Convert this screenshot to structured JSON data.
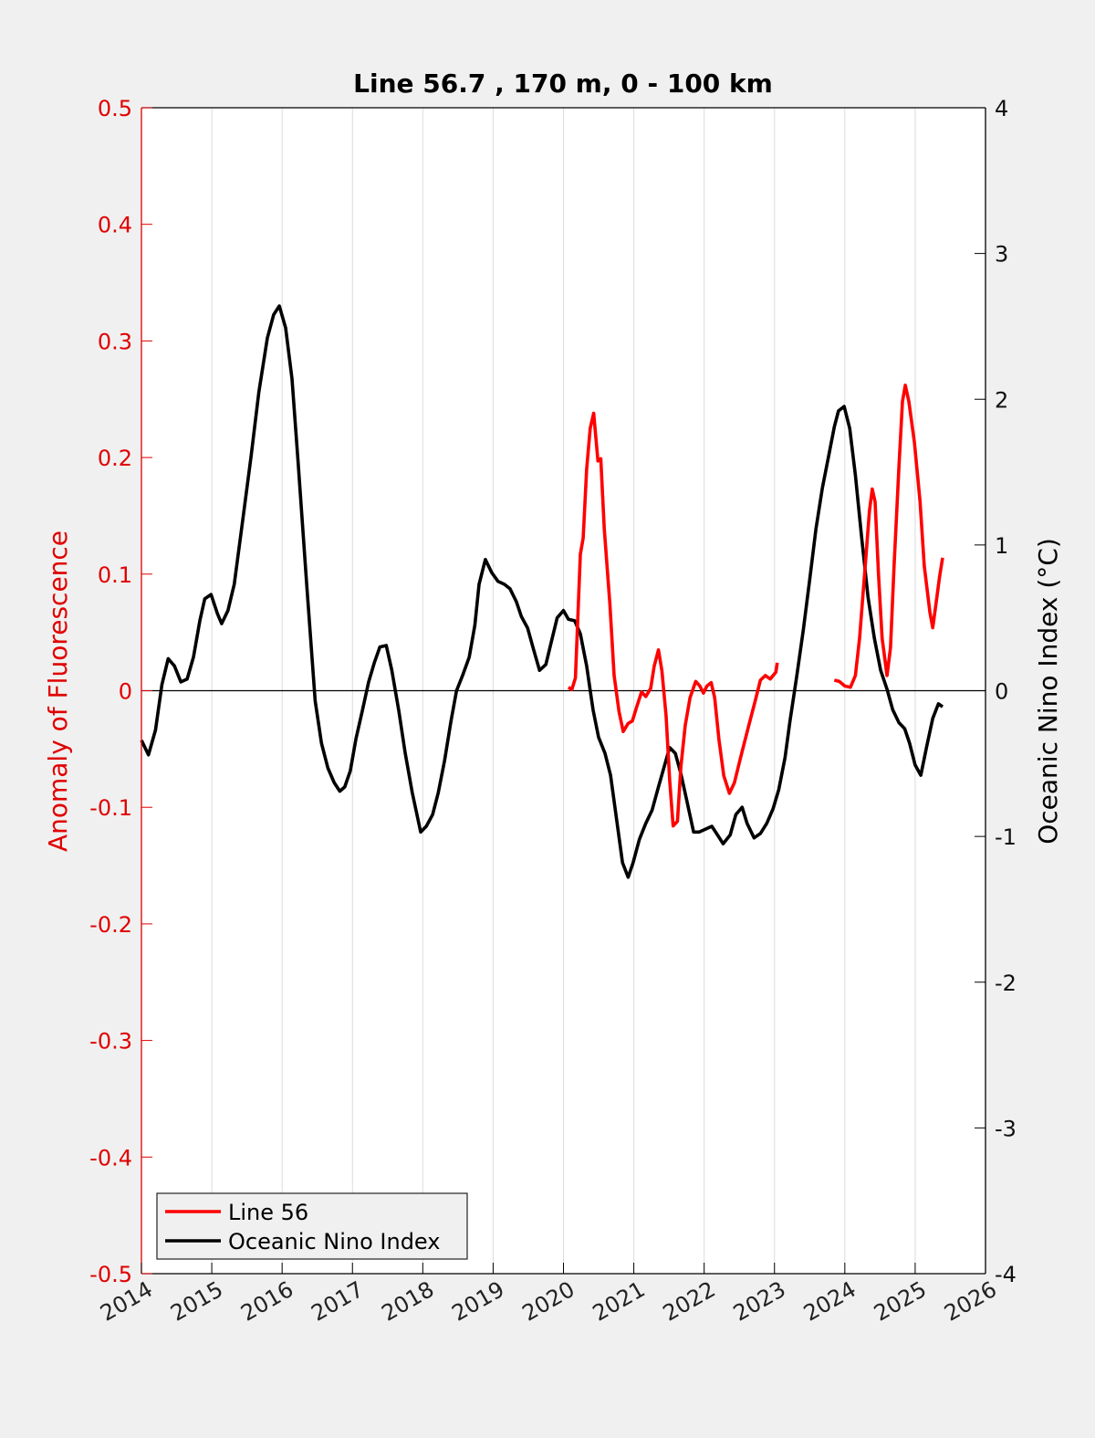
{
  "chart_data": {
    "type": "line",
    "title": "Line 56.7 , 170 m, 0 - 100 km",
    "xlabel": "",
    "ylabel": "Anomaly of Fluorescence",
    "y2label": "Oceanic Nino Index (°C)",
    "xlim": [
      2014,
      2026
    ],
    "ylim": [
      -0.5,
      0.5
    ],
    "y2lim": [
      -4,
      4
    ],
    "grid": "x-only",
    "legend_position": "bottom-left",
    "xticks": [
      "2014",
      "2015",
      "2016",
      "2017",
      "2018",
      "2019",
      "2020",
      "2021",
      "2022",
      "2023",
      "2024",
      "2025",
      "2026"
    ],
    "yticks": [
      "-0.5",
      "-0.4",
      "-0.3",
      "-0.2",
      "-0.1",
      "0",
      "0.1",
      "0.2",
      "0.3",
      "0.4",
      "0.5"
    ],
    "y2ticks": [
      "-4",
      "-3",
      "-2",
      "-1",
      "0",
      "1",
      "2",
      "3",
      "4"
    ],
    "colors": {
      "line56": "#ff0000",
      "oni": "#000000",
      "left_axis": "#e00000",
      "right_axis": "#000000"
    },
    "series": [
      {
        "name": "Line 56",
        "axis": "left",
        "segments": [
          {
            "x": [
              2020.07,
              2020.12,
              2020.17,
              2020.24,
              2020.28,
              2020.33,
              2020.38,
              2020.43,
              2020.49,
              2020.53,
              2020.58,
              2020.66,
              2020.72,
              2020.79,
              2020.85,
              2020.92,
              2020.98,
              2021.04,
              2021.11,
              2021.17,
              2021.24,
              2021.29,
              2021.35,
              2021.4,
              2021.46,
              2021.51,
              2021.56,
              2021.62,
              2021.67,
              2021.73,
              2021.8,
              2021.88,
              2021.94,
              2021.99,
              2022.04,
              2022.1,
              2022.15,
              2022.21,
              2022.28,
              2022.36,
              2022.43,
              2022.52,
              2022.63,
              2022.72,
              2022.8,
              2022.87,
              2022.94,
              2023.02,
              2023.04
            ],
            "y": [
              0.003,
              0.001,
              0.011,
              0.117,
              0.131,
              0.19,
              0.225,
              0.238,
              0.197,
              0.199,
              0.139,
              0.074,
              0.013,
              -0.018,
              -0.035,
              -0.028,
              -0.026,
              -0.014,
              -0.001,
              -0.005,
              0.002,
              0.021,
              0.035,
              0.017,
              -0.022,
              -0.077,
              -0.116,
              -0.112,
              -0.065,
              -0.03,
              -0.006,
              0.008,
              0.004,
              -0.002,
              0.004,
              0.007,
              -0.006,
              -0.042,
              -0.073,
              -0.088,
              -0.079,
              -0.057,
              -0.031,
              -0.01,
              0.009,
              0.013,
              0.01,
              0.016,
              0.024
            ]
          },
          {
            "x": [
              2023.85,
              2023.92,
              2024.0,
              2024.08,
              2024.15,
              2024.21,
              2024.29,
              2024.35,
              2024.39,
              2024.43,
              2024.48,
              2024.53,
              2024.6,
              2024.65,
              2024.7,
              2024.77,
              2024.82,
              2024.86,
              2024.91,
              2024.99,
              2025.07,
              2025.13,
              2025.21,
              2025.25,
              2025.3,
              2025.35,
              2025.39
            ],
            "y": [
              0.009,
              0.008,
              0.004,
              0.003,
              0.013,
              0.045,
              0.107,
              0.154,
              0.173,
              0.162,
              0.099,
              0.045,
              0.013,
              0.037,
              0.107,
              0.193,
              0.248,
              0.262,
              0.248,
              0.213,
              0.162,
              0.107,
              0.067,
              0.054,
              0.076,
              0.099,
              0.114
            ]
          }
        ]
      },
      {
        "name": "Oceanic Nino Index",
        "axis": "right",
        "x": [
          2014.0,
          2014.1,
          2014.2,
          2014.29,
          2014.38,
          2014.47,
          2014.56,
          2014.65,
          2014.74,
          2014.83,
          2014.9,
          2014.99,
          2015.08,
          2015.14,
          2015.23,
          2015.32,
          2015.44,
          2015.56,
          2015.67,
          2015.79,
          2015.88,
          2015.96,
          2016.05,
          2016.14,
          2016.23,
          2016.35,
          2016.47,
          2016.56,
          2016.65,
          2016.74,
          2016.82,
          2016.89,
          2016.97,
          2017.05,
          2017.14,
          2017.23,
          2017.31,
          2017.39,
          2017.48,
          2017.56,
          2017.66,
          2017.75,
          2017.85,
          2017.97,
          2018.05,
          2018.14,
          2018.22,
          2018.31,
          2018.4,
          2018.48,
          2018.57,
          2018.66,
          2018.74,
          2018.8,
          2018.89,
          2018.98,
          2019.07,
          2019.16,
          2019.24,
          2019.33,
          2019.4,
          2019.49,
          2019.57,
          2019.66,
          2019.75,
          2019.83,
          2019.91,
          2020.0,
          2020.07,
          2020.16,
          2020.24,
          2020.33,
          2020.42,
          2020.5,
          2020.59,
          2020.67,
          2020.76,
          2020.84,
          2020.92,
          2020.99,
          2021.08,
          2021.17,
          2021.26,
          2021.35,
          2021.45,
          2021.51,
          2021.59,
          2021.67,
          2021.76,
          2021.85,
          2021.93,
          2022.02,
          2022.11,
          2022.19,
          2022.27,
          2022.37,
          2022.45,
          2022.54,
          2022.61,
          2022.71,
          2022.8,
          2022.89,
          2022.98,
          2023.06,
          2023.15,
          2023.22,
          2023.32,
          2023.41,
          2023.5,
          2023.59,
          2023.68,
          2023.77,
          2023.85,
          2023.91,
          2023.99,
          2024.07,
          2024.15,
          2024.24,
          2024.33,
          2024.42,
          2024.51,
          2024.6,
          2024.68,
          2024.77,
          2024.85,
          2024.92,
          2025.0,
          2025.08,
          2025.16,
          2025.25,
          2025.33,
          2025.39
        ],
        "y": [
          -0.34,
          -0.44,
          -0.27,
          0.04,
          0.22,
          0.17,
          0.06,
          0.08,
          0.23,
          0.48,
          0.63,
          0.66,
          0.53,
          0.46,
          0.55,
          0.73,
          1.17,
          1.61,
          2.05,
          2.42,
          2.58,
          2.64,
          2.49,
          2.14,
          1.55,
          0.73,
          -0.07,
          -0.36,
          -0.53,
          -0.63,
          -0.69,
          -0.66,
          -0.55,
          -0.33,
          -0.14,
          0.06,
          0.19,
          0.3,
          0.31,
          0.14,
          -0.14,
          -0.43,
          -0.7,
          -0.97,
          -0.93,
          -0.85,
          -0.7,
          -0.48,
          -0.21,
          0.0,
          0.11,
          0.23,
          0.45,
          0.73,
          0.9,
          0.81,
          0.75,
          0.73,
          0.7,
          0.61,
          0.51,
          0.43,
          0.29,
          0.14,
          0.18,
          0.34,
          0.5,
          0.55,
          0.49,
          0.48,
          0.39,
          0.17,
          -0.13,
          -0.32,
          -0.43,
          -0.58,
          -0.9,
          -1.18,
          -1.28,
          -1.18,
          -1.02,
          -0.91,
          -0.82,
          -0.66,
          -0.49,
          -0.39,
          -0.43,
          -0.57,
          -0.77,
          -0.97,
          -0.97,
          -0.95,
          -0.93,
          -0.99,
          -1.05,
          -0.99,
          -0.85,
          -0.8,
          -0.91,
          -1.01,
          -0.98,
          -0.91,
          -0.81,
          -0.68,
          -0.46,
          -0.21,
          0.11,
          0.42,
          0.76,
          1.11,
          1.39,
          1.61,
          1.81,
          1.92,
          1.95,
          1.8,
          1.48,
          1.05,
          0.64,
          0.36,
          0.14,
          0.01,
          -0.13,
          -0.22,
          -0.26,
          -0.36,
          -0.51,
          -0.58,
          -0.39,
          -0.19,
          -0.09,
          -0.11
        ]
      }
    ],
    "legend": [
      "Line 56",
      "Oceanic Nino Index"
    ]
  }
}
